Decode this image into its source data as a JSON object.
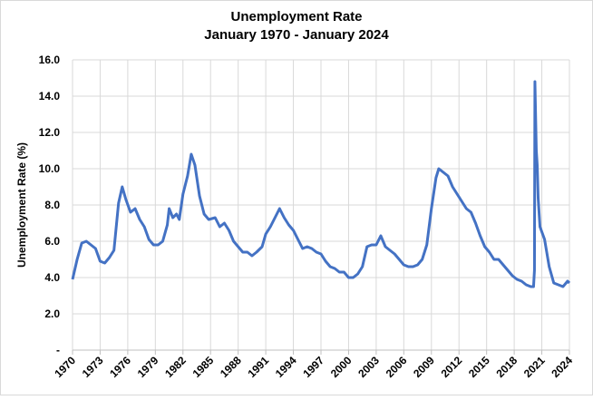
{
  "chart_data": {
    "type": "line",
    "title": "Unemployment Rate",
    "subtitle": "January 1970 - January 2024",
    "y_label": "Unemployment Rate (%)",
    "grid": true,
    "xlim": [
      1970,
      2024
    ],
    "xticks": [
      1970,
      1973,
      1976,
      1979,
      1982,
      1985,
      1988,
      1991,
      1994,
      1997,
      2000,
      2003,
      2006,
      2009,
      2012,
      2015,
      2018,
      2021,
      2024
    ],
    "ylim": [
      0,
      16
    ],
    "yticks": [
      {
        "value": 0,
        "label": "-"
      },
      {
        "value": 2,
        "label": "2.0"
      },
      {
        "value": 4,
        "label": "4.0"
      },
      {
        "value": 6,
        "label": "6.0"
      },
      {
        "value": 8,
        "label": "8.0"
      },
      {
        "value": 10,
        "label": "10.0"
      },
      {
        "value": 12,
        "label": "12.0"
      },
      {
        "value": 14,
        "label": "14.0"
      },
      {
        "value": 16,
        "label": "16.0"
      }
    ],
    "x": [
      1970.0,
      1970.5,
      1971.0,
      1971.5,
      1972.0,
      1972.5,
      1973.0,
      1973.5,
      1974.0,
      1974.5,
      1975.0,
      1975.4,
      1975.8,
      1976.3,
      1976.8,
      1977.3,
      1977.8,
      1978.3,
      1978.8,
      1979.3,
      1979.8,
      1980.3,
      1980.5,
      1980.9,
      1981.3,
      1981.6,
      1982.0,
      1982.5,
      1982.9,
      1983.3,
      1983.8,
      1984.3,
      1984.8,
      1985.5,
      1986.0,
      1986.5,
      1987.0,
      1987.5,
      1988.0,
      1988.5,
      1989.0,
      1989.5,
      1990.0,
      1990.6,
      1991.0,
      1991.5,
      1992.0,
      1992.5,
      1993.0,
      1993.5,
      1994.0,
      1994.5,
      1995.0,
      1995.5,
      1996.0,
      1996.5,
      1997.0,
      1997.5,
      1998.0,
      1998.5,
      1999.0,
      1999.5,
      2000.0,
      2000.5,
      2001.0,
      2001.5,
      2002.0,
      2002.5,
      2003.0,
      2003.5,
      2004.0,
      2004.5,
      2005.0,
      2005.5,
      2006.0,
      2006.5,
      2007.0,
      2007.5,
      2008.0,
      2008.5,
      2009.0,
      2009.5,
      2009.8,
      2010.3,
      2010.8,
      2011.3,
      2011.8,
      2012.3,
      2012.8,
      2013.3,
      2013.8,
      2014.3,
      2014.8,
      2015.3,
      2015.8,
      2016.3,
      2016.8,
      2017.3,
      2017.8,
      2018.3,
      2018.8,
      2019.3,
      2019.8,
      2020.1,
      2020.2,
      2020.25,
      2020.4,
      2020.5,
      2020.6,
      2020.8,
      2021.3,
      2021.8,
      2022.3,
      2022.8,
      2023.3,
      2023.8,
      2024.0
    ],
    "series": [
      {
        "name": "Unemployment Rate",
        "color": "#4472c4",
        "values": [
          3.9,
          5.0,
          5.9,
          6.0,
          5.8,
          5.6,
          4.9,
          4.8,
          5.1,
          5.5,
          8.1,
          9.0,
          8.3,
          7.6,
          7.8,
          7.2,
          6.8,
          6.1,
          5.8,
          5.8,
          6.0,
          6.9,
          7.8,
          7.3,
          7.5,
          7.2,
          8.6,
          9.6,
          10.8,
          10.2,
          8.5,
          7.5,
          7.2,
          7.3,
          6.8,
          7.0,
          6.6,
          6.0,
          5.7,
          5.4,
          5.4,
          5.2,
          5.4,
          5.7,
          6.4,
          6.8,
          7.3,
          7.8,
          7.3,
          6.9,
          6.6,
          6.1,
          5.6,
          5.7,
          5.6,
          5.4,
          5.3,
          4.9,
          4.6,
          4.5,
          4.3,
          4.3,
          4.0,
          4.0,
          4.2,
          4.6,
          5.7,
          5.8,
          5.8,
          6.3,
          5.7,
          5.5,
          5.3,
          5.0,
          4.7,
          4.6,
          4.6,
          4.7,
          5.0,
          5.8,
          7.8,
          9.5,
          10.0,
          9.8,
          9.6,
          9.0,
          8.6,
          8.2,
          7.8,
          7.6,
          7.0,
          6.3,
          5.7,
          5.4,
          5.0,
          5.0,
          4.7,
          4.4,
          4.1,
          3.9,
          3.8,
          3.6,
          3.5,
          3.5,
          4.4,
          14.8,
          11.0,
          10.2,
          8.4,
          6.8,
          6.1,
          4.6,
          3.7,
          3.6,
          3.5,
          3.8,
          3.7
        ]
      }
    ]
  }
}
